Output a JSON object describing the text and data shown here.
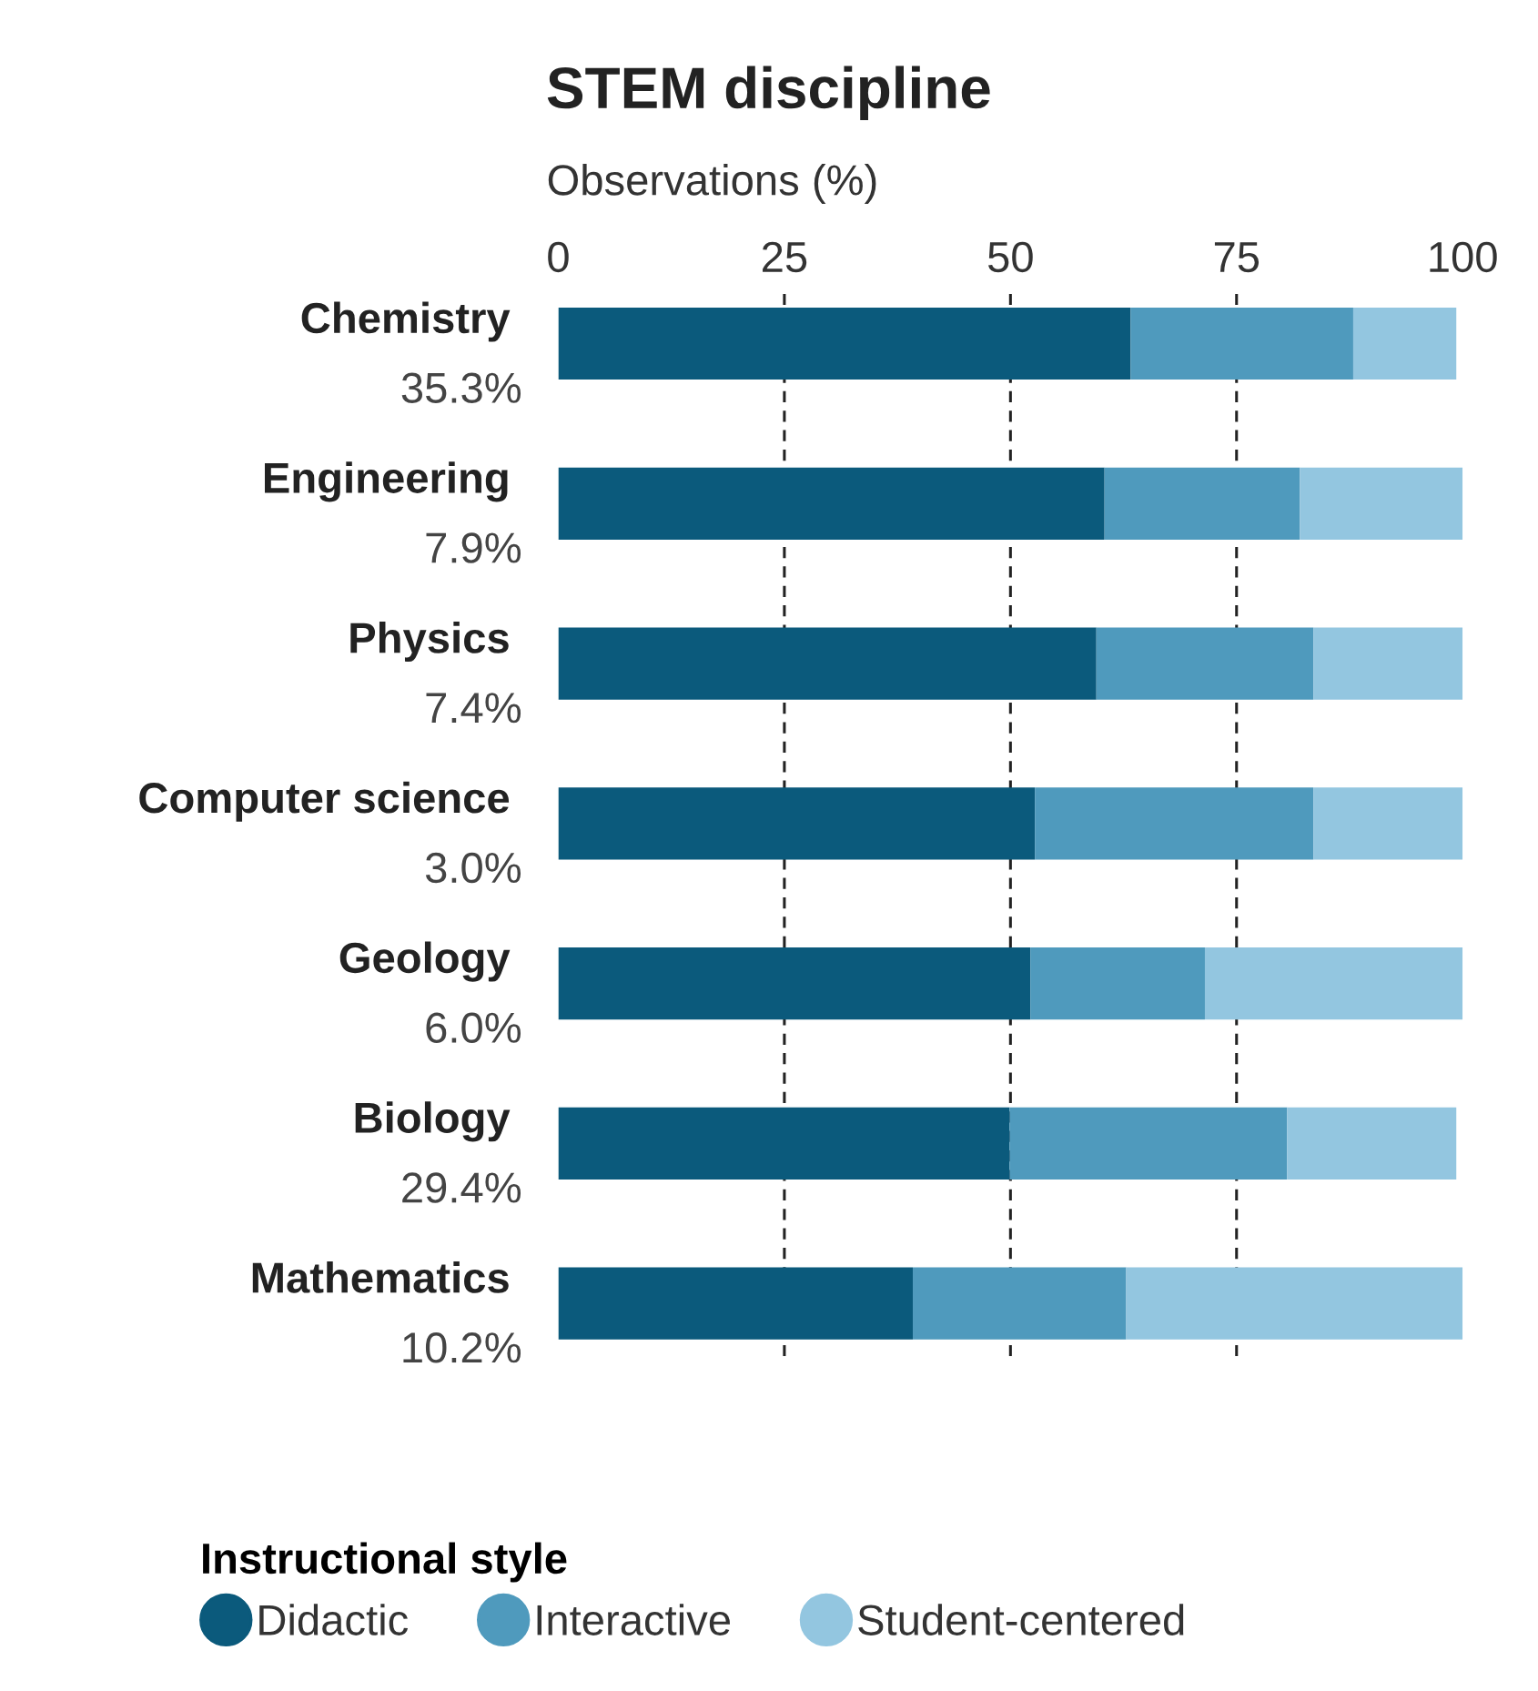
{
  "chart_data": {
    "type": "bar",
    "orientation": "horizontal",
    "stacked": true,
    "title": "STEM discipline",
    "xlabel": "Observations (%)",
    "legend_title": "Instructional style",
    "categories": [
      "Chemistry",
      "Engineering",
      "Physics",
      "Computer science",
      "Geology",
      "Biology",
      "Mathematics"
    ],
    "series": [
      {
        "name": "Didactic",
        "color": "#0b5a7c",
        "values": [
          63.3,
          60.4,
          59.5,
          52.7,
          52.2,
          49.9,
          39.2
        ]
      },
      {
        "name": "Interactive",
        "color": "#4f9abd",
        "values": [
          24.6,
          21.6,
          24.0,
          30.8,
          19.3,
          30.7,
          23.6
        ]
      },
      {
        "name": "Student-centered",
        "color": "#93c6e0",
        "values": [
          11.4,
          18.0,
          16.5,
          16.5,
          28.5,
          18.7,
          37.2
        ]
      }
    ],
    "annotations": [
      "35.3%",
      "7.9%",
      "7.4%",
      "3.0%",
      "6.0%",
      "29.4%",
      "10.2%"
    ],
    "xlim": [
      0,
      100
    ],
    "xticks": [
      0,
      25,
      50,
      75,
      100
    ],
    "ref_lines": [
      {
        "axis": "x",
        "value": 25,
        "color": "#222222",
        "line_style": "dashed"
      },
      {
        "axis": "x",
        "value": 50,
        "color": "#222222",
        "line_style": "dashed"
      },
      {
        "axis": "x",
        "value": 75,
        "color": "#222222",
        "line_style": "dashed"
      }
    ],
    "grid": false,
    "legend": "bottom",
    "marker": "circle"
  }
}
